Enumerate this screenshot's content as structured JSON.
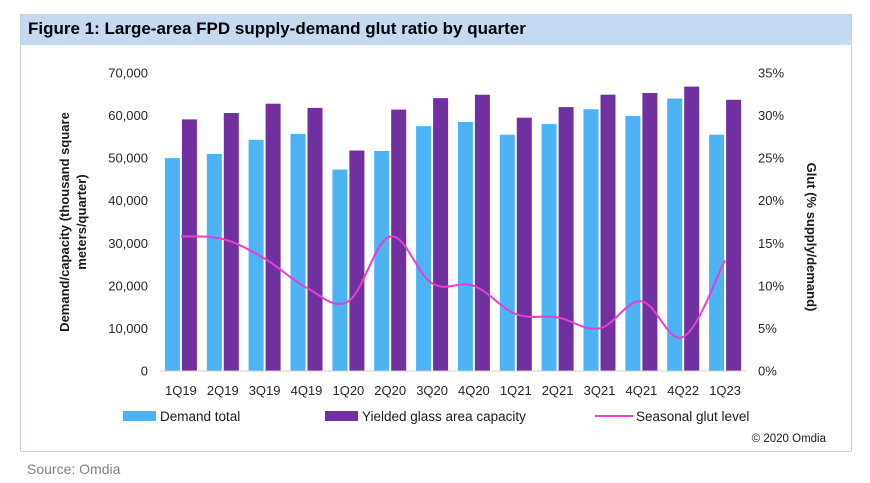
{
  "figure": {
    "title": "Figure 1: Large-area FPD supply-demand glut ratio by quarter",
    "credit": "© 2020 Omdia",
    "source": "Source: Omdia"
  },
  "chart_data": {
    "type": "bar",
    "categories": [
      "1Q19",
      "2Q19",
      "3Q19",
      "4Q19",
      "1Q20",
      "2Q20",
      "3Q20",
      "4Q20",
      "1Q21",
      "2Q21",
      "3Q21",
      "4Q21",
      "4Q22",
      "1Q23"
    ],
    "series": [
      {
        "name": "Demand total",
        "kind": "bar",
        "axis": "left",
        "color": "#4cb3f4",
        "values": [
          50000,
          51000,
          54300,
          55700,
          47300,
          51700,
          57500,
          58500,
          55500,
          58000,
          61500,
          59900,
          64000,
          55500
        ]
      },
      {
        "name": "Yielded glass area capacity",
        "kind": "bar",
        "axis": "left",
        "color": "#7030a0",
        "values": [
          59100,
          60600,
          62800,
          61800,
          51800,
          61400,
          64100,
          64900,
          59500,
          62000,
          64900,
          65300,
          66800,
          63700
        ]
      },
      {
        "name": "Seasonal glut level",
        "kind": "line",
        "axis": "right",
        "unit": "%",
        "color": "#e83fd0",
        "values": [
          15.8,
          15.5,
          13.2,
          9.8,
          8.2,
          15.8,
          10.3,
          10.0,
          6.7,
          6.3,
          5.0,
          8.2,
          4.0,
          13.0
        ]
      }
    ],
    "ylabel": "Demand/capacity (thousand square meters/quarter)",
    "ylabel_lines": [
      "Demand/capacity (thousand square",
      "meters/quarter)"
    ],
    "y2label": "Glut (% supply/demand)",
    "ylim": [
      0,
      70000
    ],
    "y_ticks": [
      0,
      10000,
      20000,
      30000,
      40000,
      50000,
      60000,
      70000
    ],
    "y_tick_labels": [
      "0",
      "10,000",
      "20,000",
      "30,000",
      "40,000",
      "50,000",
      "60,000",
      "70,000"
    ],
    "y2lim": [
      0,
      35
    ],
    "y2_ticks": [
      0,
      5,
      10,
      15,
      20,
      25,
      30,
      35
    ],
    "y2_tick_labels": [
      "0%",
      "5%",
      "10%",
      "15%",
      "20%",
      "25%",
      "30%",
      "35%"
    ],
    "legend": "bottom",
    "grid": false
  }
}
